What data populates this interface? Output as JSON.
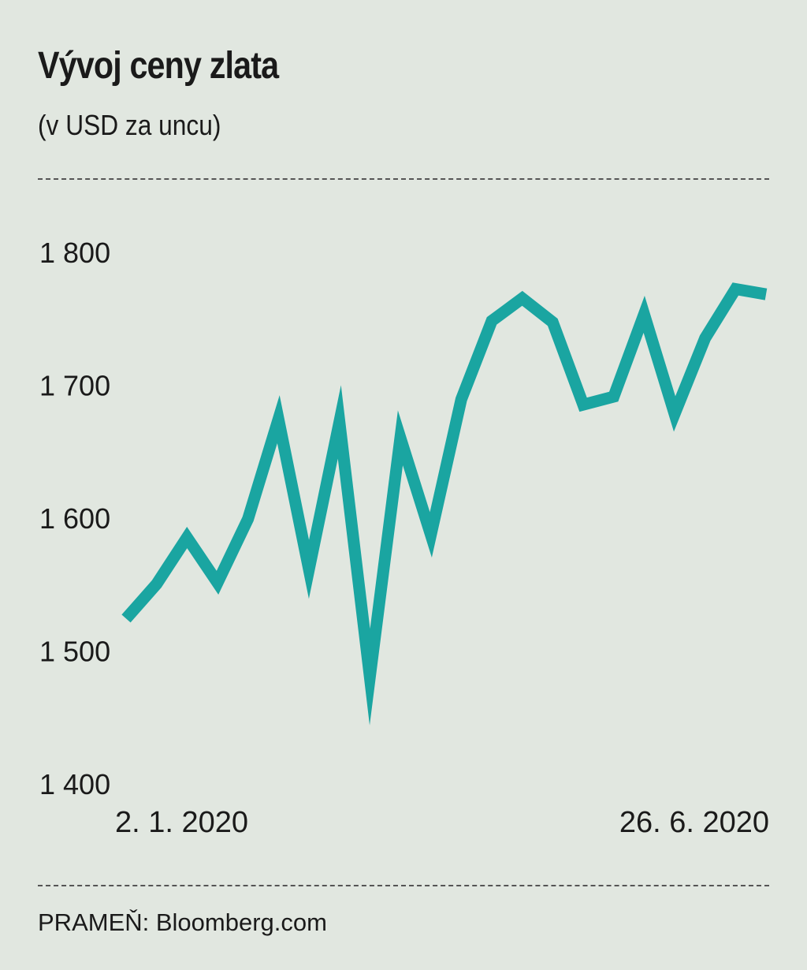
{
  "chart_data": {
    "type": "line",
    "title": "Vývoj ceny zlata",
    "subtitle": "(v USD za uncu)",
    "x_labels": [
      "2. 1. 2020",
      "26. 6. 2020"
    ],
    "y_ticks": [
      1400,
      1500,
      1600,
      1700,
      1800
    ],
    "y_tick_labels": [
      "1 400",
      "1 500",
      "1 600",
      "1 700",
      "1 800"
    ],
    "ylim": [
      1400,
      1850
    ],
    "grid": false,
    "line_color": "#1aa5a1",
    "series": [
      {
        "values": [
          1525,
          1551,
          1586,
          1552,
          1600,
          1675,
          1562,
          1673,
          1481,
          1661,
          1588,
          1690,
          1749,
          1766,
          1748,
          1686,
          1692,
          1754,
          1679,
          1736,
          1773,
          1769
        ]
      }
    ]
  },
  "source": "PRAMEŇ: Bloomberg.com",
  "colors": {
    "background": "#e1e7e0",
    "line": "#1aa5a1",
    "text": "#1a1a1a"
  }
}
